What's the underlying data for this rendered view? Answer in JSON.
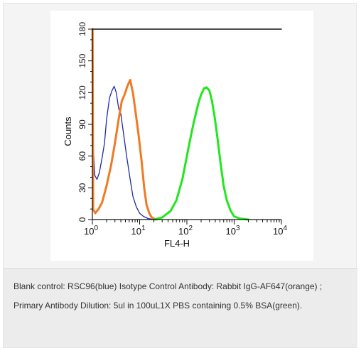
{
  "caption": "Blank control: RSC96(blue) Isotype Control Antibody: Rabbit IgG-AF647(orange) ; Primary Antibody Dilution: 5ul in 100uL1X PBS containing 0.5% BSA(green).",
  "chart_data": {
    "type": "line",
    "xlabel": "FL4-H",
    "ylabel": "Counts",
    "xscale": "log",
    "xlim": [
      1,
      10000
    ],
    "ylim": [
      0,
      180
    ],
    "x_ticks": [
      1,
      10,
      100,
      1000,
      10000
    ],
    "x_tick_labels": [
      {
        "base": "10",
        "exp": "0"
      },
      {
        "base": "10",
        "exp": "1"
      },
      {
        "base": "10",
        "exp": "2"
      },
      {
        "base": "10",
        "exp": "3"
      },
      {
        "base": "10",
        "exp": "4"
      }
    ],
    "y_ticks": [
      0,
      30,
      60,
      90,
      120,
      150,
      180
    ],
    "grid": false,
    "series": [
      {
        "color": "#1f2aa8",
        "points": [
          [
            1.02,
            180
          ],
          [
            1.04,
            70
          ],
          [
            1.12,
            42
          ],
          [
            1.25,
            38
          ],
          [
            1.4,
            44
          ],
          [
            1.6,
            58
          ],
          [
            1.8,
            72
          ],
          [
            2.0,
            95
          ],
          [
            2.3,
            115
          ],
          [
            2.6,
            122
          ],
          [
            2.9,
            126
          ],
          [
            3.2,
            120
          ],
          [
            3.6,
            105
          ],
          [
            4.0,
            100
          ],
          [
            4.6,
            80
          ],
          [
            5.3,
            60
          ],
          [
            6.2,
            40
          ],
          [
            7.2,
            22
          ],
          [
            8.5,
            12
          ],
          [
            10,
            6
          ],
          [
            12,
            3
          ],
          [
            15,
            1
          ],
          [
            20,
            0
          ]
        ]
      },
      {
        "color": "#f07a22",
        "points": [
          [
            1.01,
            180
          ],
          [
            1.04,
            10
          ],
          [
            1.15,
            6
          ],
          [
            1.35,
            10
          ],
          [
            1.6,
            16
          ],
          [
            2.0,
            32
          ],
          [
            2.5,
            52
          ],
          [
            3.0,
            72
          ],
          [
            3.6,
            95
          ],
          [
            4.2,
            112
          ],
          [
            4.8,
            118
          ],
          [
            5.5,
            126
          ],
          [
            6.3,
            132
          ],
          [
            7.2,
            120
          ],
          [
            8.3,
            100
          ],
          [
            9.5,
            80
          ],
          [
            11,
            55
          ],
          [
            12.5,
            30
          ],
          [
            14,
            14
          ],
          [
            16,
            6
          ],
          [
            18,
            2
          ],
          [
            22,
            0
          ]
        ]
      },
      {
        "color": "#22e61e",
        "points": [
          [
            20,
            0
          ],
          [
            30,
            2
          ],
          [
            45,
            8
          ],
          [
            60,
            18
          ],
          [
            80,
            38
          ],
          [
            100,
            60
          ],
          [
            120,
            78
          ],
          [
            140,
            92
          ],
          [
            160,
            103
          ],
          [
            180,
            112
          ],
          [
            200,
            118
          ],
          [
            230,
            124
          ],
          [
            260,
            125
          ],
          [
            300,
            122
          ],
          [
            340,
            112
          ],
          [
            390,
            96
          ],
          [
            450,
            75
          ],
          [
            520,
            52
          ],
          [
            600,
            32
          ],
          [
            700,
            18
          ],
          [
            850,
            8
          ],
          [
            1000,
            3
          ],
          [
            1300,
            1
          ],
          [
            2000,
            0
          ]
        ]
      },
      {
        "color": "#111111",
        "points": [
          [
            1,
            180
          ],
          [
            10000,
            180
          ]
        ]
      }
    ]
  }
}
